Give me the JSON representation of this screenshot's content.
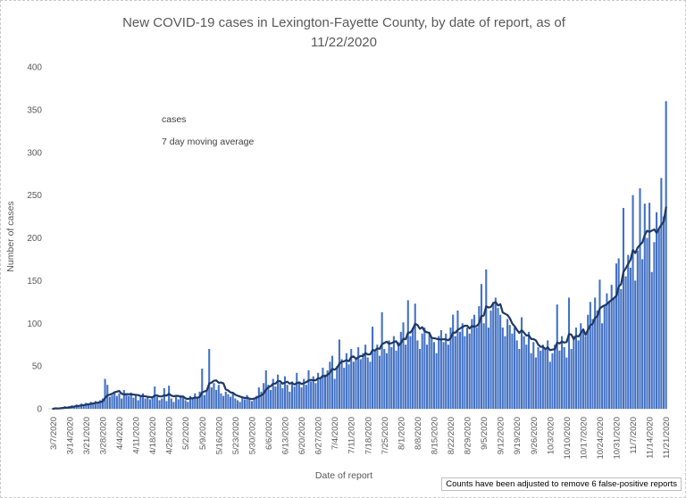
{
  "figure": {
    "title_line1": "New COVID-19 cases in Lexington-Fayette County, by date of report, as of",
    "title_line2": "11/22/2020",
    "note": "Counts have been adjusted to remove 6 false-positive reports"
  },
  "legend": {
    "items": [
      {
        "label": "cases",
        "color": "#4472c4"
      },
      {
        "label": "7 day moving average",
        "color": "#1f3864"
      }
    ]
  },
  "chart_data": {
    "type": "bar",
    "title": "New COVID-19 cases in Lexington-Fayette County, by date of report, as of 11/22/2020",
    "xlabel": "Date of report",
    "ylabel": "Number of cases",
    "ylim": [
      0,
      400
    ],
    "y_ticks": [
      0,
      50,
      100,
      150,
      200,
      250,
      300,
      350,
      400
    ],
    "grid": false,
    "legend_position": "upper-left-inside",
    "start_date": "3/7/2020",
    "end_date": "11/21/2020",
    "x_tick_interval_days": 7,
    "x_tick_labels": [
      "3/7/2020",
      "3/14/2020",
      "3/21/2020",
      "3/28/2020",
      "4/4/2020",
      "4/11/2020",
      "4/18/2020",
      "4/25/2020",
      "5/2/2020",
      "5/9/2020",
      "5/16/2020",
      "5/23/2020",
      "5/30/2020",
      "6/6/2020",
      "6/13/2020",
      "6/20/2020",
      "6/27/2020",
      "7/4/2020",
      "7/11/2020",
      "7/18/2020",
      "7/25/2020",
      "8/1/2020",
      "8/8/2020",
      "8/15/2020",
      "8/22/2020",
      "8/29/2020",
      "9/5/2020",
      "9/12/2020",
      "9/19/2020",
      "9/26/2020",
      "10/3/2020",
      "10/10/2020",
      "10/17/2020",
      "10/24/2020",
      "10/31/2020",
      "11/7/2020",
      "11/14/2020",
      "11/21/2020"
    ],
    "series": [
      {
        "name": "cases",
        "type": "bar",
        "color": "#4472c4",
        "values": [
          0,
          1,
          0,
          1,
          2,
          3,
          2,
          3,
          4,
          3,
          5,
          4,
          6,
          5,
          7,
          6,
          8,
          7,
          9,
          8,
          10,
          12,
          35,
          28,
          14,
          16,
          20,
          15,
          18,
          12,
          22,
          17,
          15,
          19,
          13,
          16,
          10,
          14,
          18,
          12,
          15,
          11,
          13,
          26,
          14,
          10,
          12,
          24,
          9,
          27,
          12,
          8,
          14,
          11,
          16,
          13,
          10,
          8,
          15,
          12,
          18,
          14,
          20,
          47,
          16,
          22,
          70,
          25,
          30,
          22,
          28,
          18,
          15,
          20,
          17,
          14,
          19,
          12,
          10,
          8,
          14,
          11,
          16,
          12,
          9,
          13,
          15,
          25,
          20,
          30,
          45,
          28,
          22,
          35,
          26,
          40,
          30,
          24,
          38,
          28,
          20,
          32,
          26,
          42,
          30,
          25,
          35,
          28,
          45,
          32,
          38,
          30,
          42,
          35,
          48,
          40,
          45,
          55,
          62,
          35,
          50,
          81,
          58,
          48,
          65,
          52,
          70,
          55,
          60,
          72,
          58,
          65,
          75,
          60,
          55,
          96,
          68,
          75,
          62,
          113,
          70,
          65,
          80,
          72,
          85,
          68,
          78,
          90,
          101,
          75,
          127,
          85,
          95,
          123,
          80,
          70,
          88,
          95,
          75,
          90,
          82,
          78,
          65,
          85,
          92,
          78,
          88,
          75,
          95,
          110,
          85,
          115,
          90,
          100,
          85,
          95,
          88,
          105,
          110,
          95,
          120,
          146,
          100,
          163,
          95,
          115,
          125,
          130,
          118,
          110,
          95,
          85,
          105,
          98,
          88,
          95,
          80,
          70,
          107,
          85,
          75,
          90,
          65,
          78,
          60,
          72,
          68,
          75,
          70,
          80,
          55,
          65,
          75,
          122,
          68,
          85,
          72,
          60,
          130,
          70,
          85,
          95,
          80,
          100,
          90,
          85,
          110,
          125,
          105,
          130,
          115,
          151,
          100,
          120,
          135,
          125,
          145,
          130,
          170,
          176,
          140,
          235,
          155,
          180,
          165,
          250,
          150,
          185,
          258,
          175,
          240,
          200,
          241,
          160,
          195,
          230,
          210,
          270,
          225,
          360
        ]
      },
      {
        "name": "7 day moving average",
        "type": "line",
        "color": "#1f3864",
        "derived_from": "7-day trailing average of cases series"
      }
    ]
  }
}
